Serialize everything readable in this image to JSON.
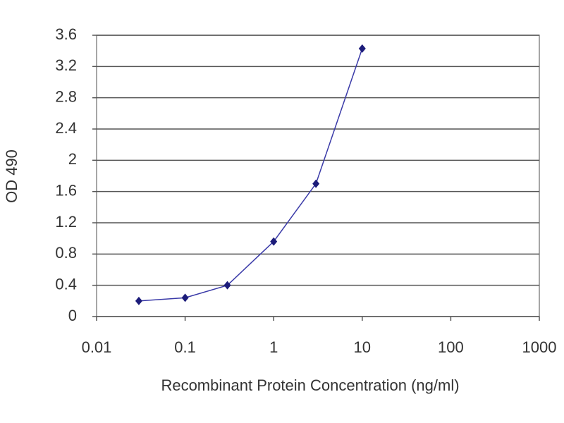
{
  "chart_data": {
    "type": "line",
    "xlabel": "Recombinant Protein Concentration (ng/ml)",
    "ylabel": "OD 490",
    "x": [
      0.03,
      0.1,
      0.3,
      1,
      3,
      10
    ],
    "series": [
      {
        "color": "#1c1c7a",
        "values": [
          0.2,
          0.24,
          0.4,
          0.96,
          1.7,
          3.43
        ]
      }
    ],
    "xscale": "log",
    "xlim": [
      0.01,
      1000
    ],
    "xticks": [
      0.01,
      0.1,
      1,
      10,
      100,
      1000
    ],
    "ylim": [
      0,
      3.6
    ],
    "yticks": [
      0,
      0.4,
      0.8,
      1.2,
      1.6,
      2,
      2.4,
      2.8,
      3.2,
      3.6
    ],
    "grid": true
  }
}
